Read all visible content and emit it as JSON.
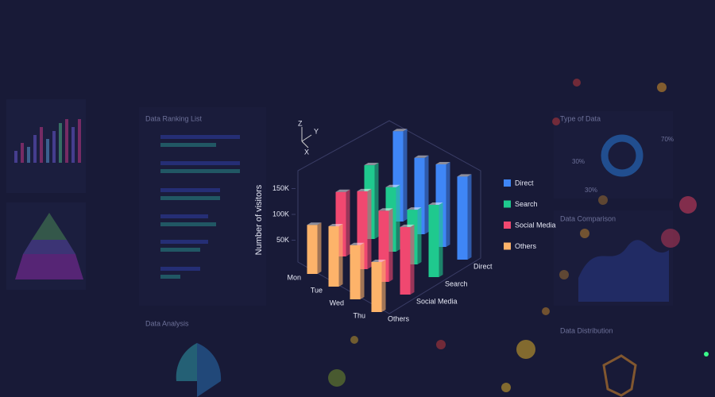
{
  "panels": {
    "ranking": "Data Ranking List",
    "analysis": "Data Analysis",
    "type_of_data": "Type of Data",
    "type_labels": [
      "70%",
      "30%",
      "30%"
    ],
    "comparison": "Data Comparison",
    "distribution": "Data Distribution"
  },
  "chart_data": {
    "type": "bar3d",
    "axis_gizmo": [
      "Z",
      "Y",
      "X"
    ],
    "ylabel": "Number of visitors",
    "categories": [
      "Mon",
      "Tue",
      "Wed",
      "Thu"
    ],
    "series": [
      {
        "name": "Direct",
        "color": "#3f86f6",
        "values": [
          175000,
          148000,
          160000,
          161000
        ]
      },
      {
        "name": "Search",
        "color": "#1fc98e",
        "values": [
          143000,
          125000,
          106000,
          140000
        ]
      },
      {
        "name": "Social Media",
        "color": "#f04870",
        "values": [
          125000,
          151000,
          138000,
          131000
        ]
      },
      {
        "name": "Others",
        "color": "#fdb36a",
        "values": [
          95000,
          117000,
          105000,
          97000
        ]
      }
    ],
    "ylim": [
      0,
      200000
    ],
    "yticks": [
      {
        "value": 50000,
        "label": "50K"
      },
      {
        "value": 100000,
        "label": "100K"
      },
      {
        "value": 150000,
        "label": "150K"
      }
    ]
  }
}
